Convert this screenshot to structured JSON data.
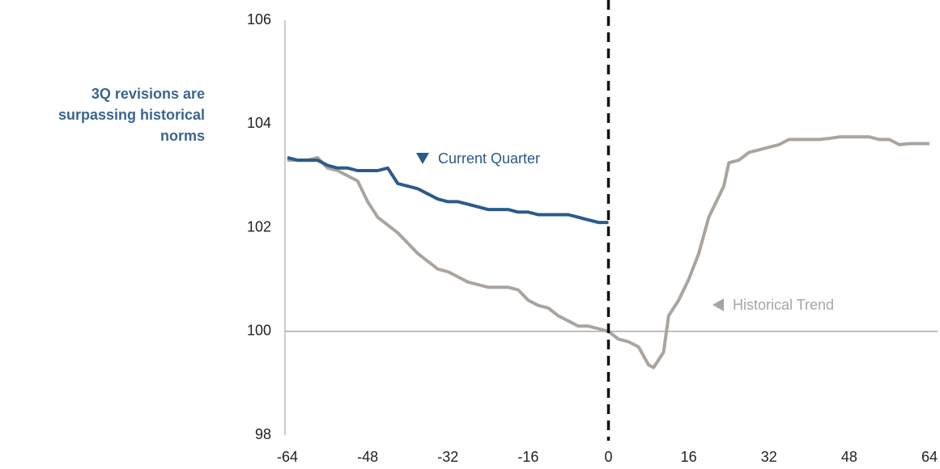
{
  "chart_data": {
    "type": "line",
    "side_note": [
      "3Q revisions are",
      "surpassing historical",
      "norms"
    ],
    "xlim": [
      -64,
      64
    ],
    "xticks": [
      -64,
      -48,
      -32,
      -16,
      0,
      16,
      32,
      48,
      64
    ],
    "ylim": [
      98,
      106
    ],
    "yticks": [
      98,
      100,
      102,
      104,
      106
    ],
    "reference_line_x": 0,
    "baseline_y": 100,
    "series": [
      {
        "name": "Current Quarter",
        "color": "#2b5b8c",
        "x": [
          -64,
          -62,
          -60,
          -58,
          -56,
          -54,
          -52,
          -50,
          -48,
          -46,
          -44,
          -42,
          -40,
          -38,
          -36,
          -34,
          -32,
          -30,
          -28,
          -26,
          -24,
          -22,
          -20,
          -18,
          -16,
          -14,
          -12,
          -10,
          -8,
          -6,
          -4,
          -2,
          0
        ],
        "values": [
          103.35,
          103.3,
          103.3,
          103.3,
          103.2,
          103.15,
          103.15,
          103.1,
          103.1,
          103.1,
          103.15,
          102.85,
          102.8,
          102.75,
          102.65,
          102.55,
          102.5,
          102.5,
          102.45,
          102.4,
          102.35,
          102.35,
          102.35,
          102.3,
          102.3,
          102.25,
          102.25,
          102.25,
          102.25,
          102.2,
          102.15,
          102.1,
          102.1
        ]
      },
      {
        "name": "Historical Trend",
        "color": "#aba49e",
        "x": [
          -64,
          -62,
          -60,
          -58,
          -56,
          -54,
          -52,
          -50,
          -48,
          -46,
          -44,
          -42,
          -40,
          -38,
          -36,
          -34,
          -32,
          -30,
          -28,
          -26,
          -24,
          -22,
          -20,
          -18,
          -16,
          -14,
          -12,
          -10,
          -8,
          -6,
          -4,
          -2,
          0,
          2,
          4,
          6,
          8,
          9,
          10,
          11,
          12,
          14,
          16,
          18,
          20,
          22,
          23,
          24,
          26,
          28,
          30,
          32,
          34,
          36,
          38,
          40,
          42,
          44,
          46,
          48,
          50,
          52,
          54,
          56,
          58,
          60,
          62,
          64
        ],
        "values": [
          103.3,
          103.3,
          103.3,
          103.35,
          103.15,
          103.1,
          103.0,
          102.9,
          102.5,
          102.2,
          102.05,
          101.9,
          101.7,
          101.5,
          101.35,
          101.2,
          101.15,
          101.05,
          100.95,
          100.9,
          100.85,
          100.85,
          100.85,
          100.8,
          100.6,
          100.5,
          100.45,
          100.3,
          100.2,
          100.1,
          100.1,
          100.05,
          100,
          99.85,
          99.8,
          99.7,
          99.35,
          99.3,
          99.45,
          99.6,
          100.3,
          100.6,
          101.0,
          101.5,
          102.2,
          102.6,
          102.8,
          103.25,
          103.3,
          103.45,
          103.5,
          103.55,
          103.6,
          103.7,
          103.7,
          103.7,
          103.7,
          103.72,
          103.75,
          103.75,
          103.75,
          103.75,
          103.7,
          103.7,
          103.6,
          103.62,
          103.62,
          103.62
        ]
      }
    ]
  }
}
